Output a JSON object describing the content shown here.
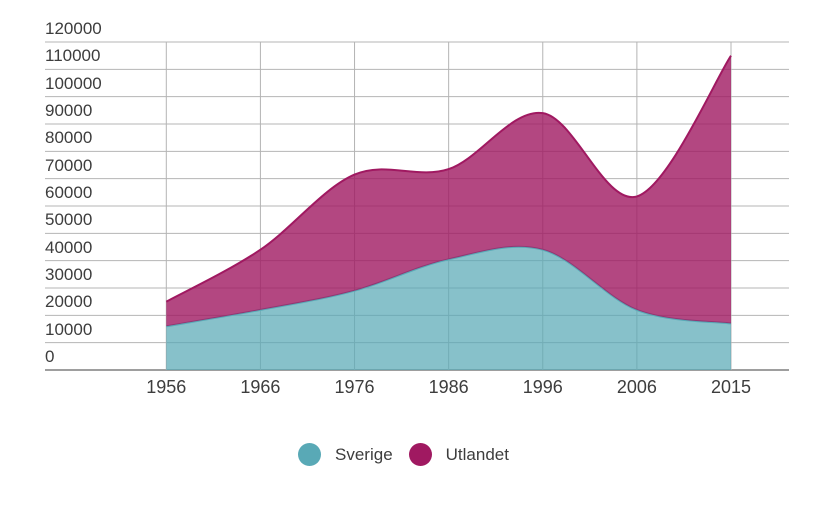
{
  "chart_data": {
    "type": "area",
    "stacked": true,
    "title": "",
    "xlabel": "",
    "ylabel": "",
    "categories": [
      "1956",
      "1966",
      "1976",
      "1986",
      "1996",
      "2006",
      "2015"
    ],
    "series": [
      {
        "name": "Sverige",
        "color": "#59A9B6",
        "fill_opacity": 0.72,
        "values": [
          16000,
          22000,
          29000,
          40500,
          44000,
          22000,
          17000
        ]
      },
      {
        "name": "Utlandet",
        "color": "#A01961",
        "fill_opacity": 0.8,
        "values": [
          9000,
          22000,
          42500,
          33000,
          50000,
          41500,
          98000
        ]
      }
    ],
    "stacked_totals": [
      25000,
      44000,
      71500,
      73500,
      94000,
      63500,
      115000
    ],
    "ylim": [
      0,
      120000
    ],
    "ytick_step": 10000,
    "yticks": [
      "0",
      "10000",
      "20000",
      "30000",
      "40000",
      "50000",
      "60000",
      "70000",
      "80000",
      "90000",
      "100000",
      "110000",
      "120000"
    ],
    "grid": true,
    "legend_position": "bottom",
    "colors": {
      "axis_text": "#3d3d3d",
      "grid_line": "#b4b4b4",
      "axis_line": "#9e9e9e",
      "background": "#ffffff"
    }
  },
  "legend": {
    "items": [
      {
        "label": "Sverige",
        "color": "#59A9B6"
      },
      {
        "label": "Utlandet",
        "color": "#A01961"
      }
    ]
  }
}
